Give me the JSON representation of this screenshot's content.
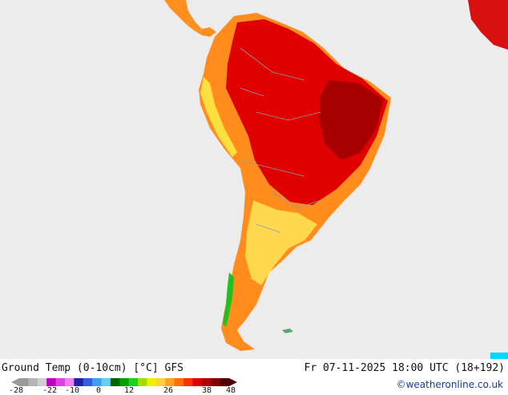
{
  "map": {
    "title": "Ground Temp (0-10cm) [°C] GFS",
    "valid_time": "Fr 07-11-2025 18:00 UTC (18+192)",
    "credit": "©weatheronline.co.uk",
    "legend": {
      "ticks": [
        "-28",
        "-22",
        "-10",
        "0",
        "12",
        "26",
        "38",
        "48"
      ],
      "colors": [
        "#9a9a9a",
        "#b4b4b4",
        "#cfcfcf",
        "#c000c0",
        "#e040e0",
        "#f080f0",
        "#2020a0",
        "#3060e0",
        "#40a0f0",
        "#60d0f0",
        "#006400",
        "#00a000",
        "#20d020",
        "#a0e000",
        "#f0f000",
        "#ffd040",
        "#ffa020",
        "#ff7000",
        "#ff3000",
        "#e00000",
        "#b00000",
        "#800000",
        "#500000"
      ]
    },
    "colors": {
      "ocean": "#ececec",
      "border": "#8a9aa8",
      "hot": "#e00000",
      "warm": "#ff7000",
      "mild": "#ffd040",
      "cool": "#20c020"
    }
  }
}
